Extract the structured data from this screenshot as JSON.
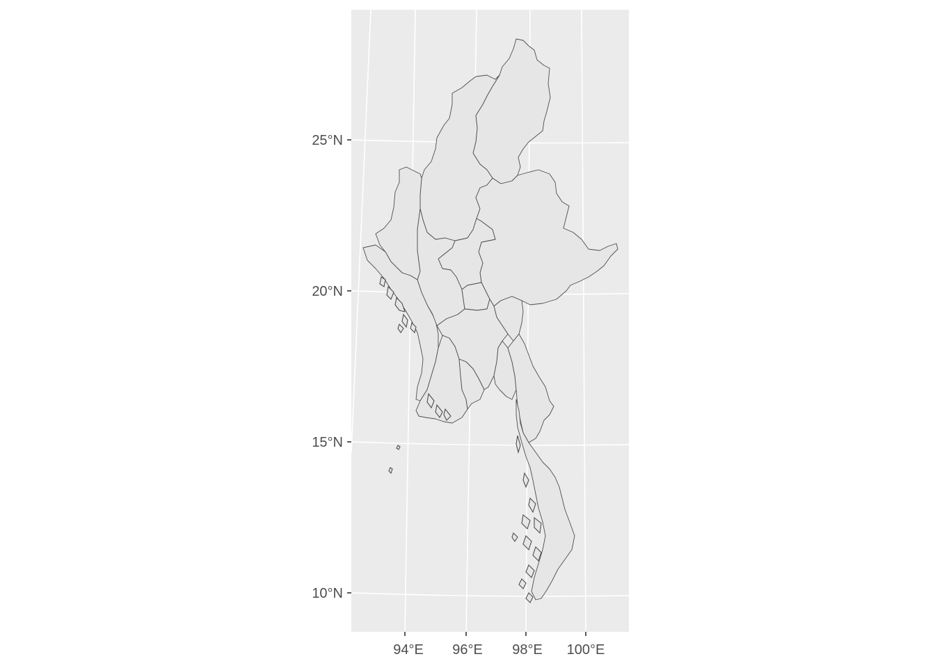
{
  "map": {
    "country": "Myanmar",
    "projection": "conic",
    "panel_background": "#EBEBEB",
    "grid_color": "#FFFFFF",
    "region_fill": "#E6E6E6",
    "region_stroke": "#4D4D4D",
    "lat_labels": [
      {
        "lat": 25,
        "label": "25°N"
      },
      {
        "lat": 20,
        "label": "20°N"
      },
      {
        "lat": 15,
        "label": "15°N"
      },
      {
        "lat": 10,
        "label": "10°N"
      }
    ],
    "lon_labels": [
      {
        "lon": 94,
        "label": "94°E"
      },
      {
        "lon": 96,
        "label": "96°E"
      },
      {
        "lon": 98,
        "label": "98°E"
      },
      {
        "lon": 100,
        "label": "100°E"
      }
    ]
  }
}
